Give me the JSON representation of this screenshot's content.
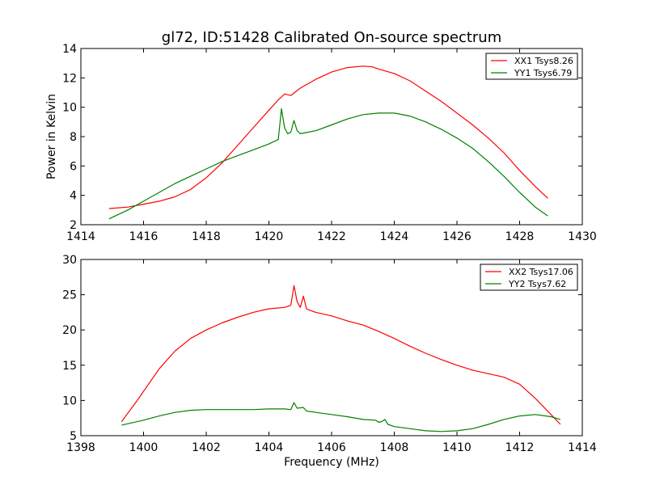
{
  "chart_data": [
    {
      "type": "line",
      "title": "gl72, ID:51428 Calibrated On-source spectrum",
      "xlabel": "",
      "ylabel": "Power in Kelvin",
      "xlim": [
        1414,
        1430
      ],
      "ylim": [
        2,
        14
      ],
      "xticks": [
        1414,
        1416,
        1418,
        1420,
        1422,
        1424,
        1426,
        1428,
        1430
      ],
      "yticks": [
        2,
        4,
        6,
        8,
        10,
        12,
        14
      ],
      "legend_position": "top-right",
      "series": [
        {
          "name": "XX1 Tsys8.26",
          "color": "#ff0000",
          "x": [
            1414.9,
            1415.5,
            1416.0,
            1416.5,
            1417.0,
            1417.5,
            1418.0,
            1418.5,
            1419.0,
            1419.5,
            1420.0,
            1420.3,
            1420.5,
            1420.7,
            1421.0,
            1421.5,
            1422.0,
            1422.5,
            1423.0,
            1423.3,
            1423.5,
            1424.0,
            1424.5,
            1425.0,
            1425.5,
            1426.0,
            1426.5,
            1427.0,
            1427.5,
            1428.0,
            1428.5,
            1428.9
          ],
          "y": [
            3.1,
            3.2,
            3.4,
            3.6,
            3.9,
            4.4,
            5.2,
            6.2,
            7.4,
            8.6,
            9.8,
            10.5,
            10.9,
            10.8,
            11.3,
            11.9,
            12.4,
            12.7,
            12.8,
            12.75,
            12.6,
            12.3,
            11.8,
            11.1,
            10.4,
            9.6,
            8.8,
            7.9,
            6.9,
            5.7,
            4.6,
            3.8
          ]
        },
        {
          "name": "YY1 Tsys6.79",
          "color": "#008000",
          "x": [
            1414.9,
            1415.5,
            1416.0,
            1416.5,
            1417.0,
            1417.5,
            1418.0,
            1418.5,
            1419.0,
            1419.5,
            1420.0,
            1420.3,
            1420.4,
            1420.5,
            1420.6,
            1420.7,
            1420.8,
            1420.9,
            1421.0,
            1421.5,
            1422.0,
            1422.5,
            1423.0,
            1423.5,
            1424.0,
            1424.5,
            1425.0,
            1425.5,
            1426.0,
            1426.5,
            1427.0,
            1427.5,
            1428.0,
            1428.5,
            1428.9
          ],
          "y": [
            2.4,
            3.0,
            3.6,
            4.2,
            4.8,
            5.3,
            5.8,
            6.3,
            6.7,
            7.1,
            7.5,
            7.8,
            9.9,
            8.6,
            8.2,
            8.3,
            9.1,
            8.4,
            8.2,
            8.4,
            8.8,
            9.2,
            9.5,
            9.6,
            9.6,
            9.4,
            9.0,
            8.5,
            7.9,
            7.2,
            6.3,
            5.3,
            4.2,
            3.2,
            2.6
          ]
        }
      ]
    },
    {
      "type": "line",
      "title": "",
      "xlabel": "Frequency (MHz)",
      "ylabel": "",
      "xlim": [
        1398,
        1414
      ],
      "ylim": [
        5,
        30
      ],
      "xticks": [
        1398,
        1400,
        1402,
        1404,
        1406,
        1408,
        1410,
        1412,
        1414
      ],
      "yticks": [
        5,
        10,
        15,
        20,
        25,
        30
      ],
      "legend_position": "top-right",
      "series": [
        {
          "name": "XX2 Tsys17.06",
          "color": "#ff0000",
          "x": [
            1399.3,
            1399.8,
            1400.5,
            1401.0,
            1401.5,
            1402.0,
            1402.5,
            1403.0,
            1403.5,
            1404.0,
            1404.5,
            1404.7,
            1404.8,
            1404.9,
            1405.0,
            1405.1,
            1405.2,
            1405.3,
            1405.5,
            1406.0,
            1406.5,
            1407.0,
            1407.5,
            1408.0,
            1408.5,
            1409.0,
            1409.5,
            1410.0,
            1410.5,
            1411.0,
            1411.5,
            1412.0,
            1412.5,
            1413.0,
            1413.3
          ],
          "y": [
            7.0,
            10.0,
            14.5,
            17.0,
            18.8,
            20.0,
            21.0,
            21.8,
            22.5,
            23.0,
            23.2,
            23.5,
            26.3,
            24.0,
            23.2,
            24.8,
            23.0,
            22.8,
            22.5,
            22.0,
            21.3,
            20.7,
            19.8,
            18.8,
            17.7,
            16.7,
            15.8,
            15.0,
            14.3,
            13.8,
            13.3,
            12.3,
            10.3,
            8.0,
            6.6
          ]
        },
        {
          "name": "YY2 Tsys7.62",
          "color": "#008000",
          "x": [
            1399.3,
            1400.0,
            1400.5,
            1401.0,
            1401.5,
            1402.0,
            1402.5,
            1403.0,
            1403.5,
            1404.0,
            1404.5,
            1404.7,
            1404.8,
            1404.9,
            1405.1,
            1405.2,
            1405.5,
            1406.0,
            1406.5,
            1407.0,
            1407.4,
            1407.5,
            1407.6,
            1407.7,
            1407.8,
            1408.0,
            1408.5,
            1409.0,
            1409.5,
            1410.0,
            1410.5,
            1411.0,
            1411.5,
            1412.0,
            1412.5,
            1413.0,
            1413.3
          ],
          "y": [
            6.5,
            7.2,
            7.8,
            8.3,
            8.6,
            8.7,
            8.7,
            8.7,
            8.7,
            8.8,
            8.8,
            8.7,
            9.7,
            8.9,
            9.0,
            8.5,
            8.3,
            8.0,
            7.7,
            7.3,
            7.2,
            6.9,
            7.0,
            7.3,
            6.6,
            6.3,
            6.0,
            5.7,
            5.6,
            5.7,
            6.0,
            6.6,
            7.3,
            7.8,
            8.0,
            7.7,
            7.3
          ]
        }
      ]
    }
  ]
}
